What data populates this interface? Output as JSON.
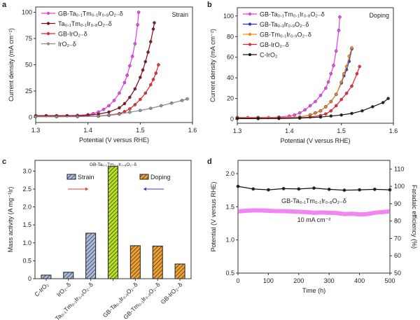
{
  "panel_letters": [
    "a",
    "b",
    "c",
    "d"
  ],
  "chart_data": [
    {
      "panel": "a",
      "type": "line",
      "annotation": "Strain",
      "xlabel": "Potential (V versus RHE)",
      "ylabel": "Current density (mA cm⁻²)",
      "xlim": [
        1.3,
        1.6
      ],
      "ylim": [
        -5,
        105
      ],
      "xticks": [
        1.3,
        1.4,
        1.5,
        1.6
      ],
      "yticks": [
        0,
        25,
        50,
        75,
        100
      ],
      "grid": false,
      "legend": "top-left",
      "series": [
        {
          "name": "GB-Ta₀.₁Tm₀.₁Ir₀.₈O₂₋δ",
          "color": "#e83be8",
          "x": [
            1.3,
            1.32,
            1.34,
            1.36,
            1.38,
            1.4,
            1.41,
            1.42,
            1.43,
            1.44,
            1.45,
            1.46,
            1.47,
            1.475,
            1.48,
            1.485,
            1.49,
            1.495,
            1.497
          ],
          "y": [
            1.5,
            1.5,
            1.5,
            1.5,
            1.8,
            2.5,
            3.5,
            5,
            7.5,
            11,
            16,
            23,
            33,
            40,
            49,
            58,
            70,
            88,
            100
          ]
        },
        {
          "name": "Ta₀.₁Tm₀.₁Ir₀.₈O₂₋δ",
          "color": "#7a0a14",
          "x": [
            1.3,
            1.32,
            1.34,
            1.36,
            1.38,
            1.4,
            1.42,
            1.44,
            1.46,
            1.47,
            1.48,
            1.49,
            1.5,
            1.505,
            1.51,
            1.515,
            1.52,
            1.525,
            1.527
          ],
          "y": [
            1.5,
            1.5,
            1.5,
            1.5,
            1.5,
            2,
            3,
            5,
            9,
            13,
            19,
            27,
            38,
            45,
            53,
            62,
            72,
            84,
            90
          ]
        },
        {
          "name": "GB-IrO₂₋δ",
          "color": "#e8202a",
          "x": [
            1.3,
            1.34,
            1.38,
            1.42,
            1.44,
            1.46,
            1.47,
            1.48,
            1.49,
            1.5,
            1.51,
            1.52,
            1.525,
            1.53,
            1.535
          ],
          "y": [
            1,
            1,
            1,
            1.2,
            2,
            3.5,
            5.5,
            8,
            12,
            17,
            23,
            31,
            36,
            42,
            50
          ]
        },
        {
          "name": "IrO₂₋δ",
          "color": "#8c8c8c",
          "x": [
            1.3,
            1.34,
            1.38,
            1.42,
            1.44,
            1.46,
            1.48,
            1.5,
            1.52,
            1.54,
            1.56,
            1.58,
            1.59
          ],
          "y": [
            0.5,
            0.5,
            0.6,
            1,
            1.8,
            3,
            4.8,
            6.5,
            8.5,
            11,
            13.5,
            16,
            17.5
          ]
        }
      ]
    },
    {
      "panel": "b",
      "type": "line",
      "annotation": "Doping",
      "xlabel": "Potential (V versus RHE)",
      "ylabel": "Current density (mA cm⁻²)",
      "xlim": [
        1.3,
        1.6
      ],
      "ylim": [
        -4,
        108
      ],
      "xticks": [
        1.3,
        1.4,
        1.5,
        1.6
      ],
      "yticks": [
        0,
        20,
        40,
        60,
        80,
        100
      ],
      "grid": false,
      "legend": "top-left",
      "series": [
        {
          "name": "GB-Ta₀.₁Tm₀.₁Ir₀.₈O₂₋δ",
          "color": "#e83be8",
          "x": [
            1.3,
            1.32,
            1.34,
            1.36,
            1.38,
            1.4,
            1.41,
            1.42,
            1.43,
            1.44,
            1.45,
            1.46,
            1.47,
            1.475,
            1.48,
            1.485,
            1.49,
            1.495,
            1.497
          ],
          "y": [
            1.5,
            1.5,
            1.5,
            1.5,
            2,
            3,
            4,
            6,
            9,
            13,
            17,
            23,
            30,
            36,
            44,
            52,
            66,
            86,
            99
          ]
        },
        {
          "name": "GB-Ta₀.₁Ir₀.₉O₂₋δ",
          "color": "#2233cc",
          "x": [
            1.3,
            1.34,
            1.38,
            1.42,
            1.44,
            1.45,
            1.46,
            1.47,
            1.48,
            1.49,
            1.5,
            1.505,
            1.51,
            1.515,
            1.52
          ],
          "y": [
            1.5,
            1.5,
            1.5,
            2,
            4,
            6,
            8,
            12,
            17,
            24,
            35,
            42,
            48,
            56,
            68
          ]
        },
        {
          "name": "GB-Tm₀.₁Ir₀.₉O₂₋δ",
          "color": "#f08a1c",
          "x": [
            1.3,
            1.34,
            1.38,
            1.42,
            1.44,
            1.45,
            1.46,
            1.47,
            1.48,
            1.49,
            1.5,
            1.505,
            1.51,
            1.515,
            1.52
          ],
          "y": [
            1.5,
            1.5,
            1.5,
            2,
            4,
            6,
            8,
            12,
            17,
            24,
            36,
            44,
            51,
            61,
            69
          ]
        },
        {
          "name": "GB-IrO₂₋δ",
          "color": "#e8202a",
          "x": [
            1.3,
            1.34,
            1.38,
            1.42,
            1.44,
            1.46,
            1.47,
            1.48,
            1.49,
            1.5,
            1.51,
            1.52,
            1.53,
            1.535
          ],
          "y": [
            1,
            1,
            1,
            1.2,
            2,
            3.5,
            5,
            8,
            13,
            19,
            25,
            32,
            44,
            51
          ]
        },
        {
          "name": "C-IrO₂",
          "color": "#111111",
          "x": [
            1.3,
            1.34,
            1.38,
            1.42,
            1.46,
            1.48,
            1.5,
            1.52,
            1.54,
            1.56,
            1.58,
            1.59
          ],
          "y": [
            0.5,
            0.5,
            0.6,
            1,
            2,
            3,
            4,
            5.5,
            8,
            12,
            16,
            20
          ]
        }
      ]
    },
    {
      "panel": "c",
      "type": "bar",
      "ylabel": "Mass activity (A mg⁻¹Ir)",
      "ylim": [
        0,
        3.3
      ],
      "yticks": [
        0,
        0.5,
        1.0,
        1.5,
        2.0,
        2.5,
        3.0
      ],
      "categories": [
        "C-IrO₂",
        "IrO₂₋δ",
        "Ta₀.₁Tm₀.₁Ir₀.₈O₂₋δ",
        "",
        "GB-Ta₀.₁Ir₀.₉O₂₋δ",
        "GB-Tm₀.₁Ir₀.₉O₂₋δ",
        "GB-IrO₂₋δ"
      ],
      "top_label": "GB-Ta₀.₁Tm₀.₁Ir₀.₈O₂₋δ",
      "values": [
        0.1,
        0.18,
        1.27,
        3.13,
        0.92,
        0.91,
        0.41
      ],
      "groups": [
        "strain",
        "strain",
        "strain",
        "best",
        "doping",
        "doping",
        "doping"
      ],
      "legend": [
        {
          "name": "Strain",
          "color": "#a9bbdd",
          "arrow": "right",
          "arrow_color": "#e8403a"
        },
        {
          "name": "Doping",
          "color": "#f0a030",
          "arrow": "left",
          "arrow_color": "#3a3ae0"
        }
      ],
      "colors": {
        "strain": "#a9bbdd",
        "doping": "#f0a030",
        "best": "#b8e020"
      },
      "grid": false
    },
    {
      "panel": "d",
      "type": "line",
      "xlabel": "Time (h)",
      "ylabel": "Potential (V versus RHE)",
      "ylabel_right": "Faradaic efficiency (%)",
      "xlim": [
        0,
        500
      ],
      "ylim": [
        0.5,
        2.2
      ],
      "ylim_right": [
        50,
        115
      ],
      "xticks": [
        0,
        100,
        200,
        300,
        400,
        500
      ],
      "yticks": [
        0.5,
        1.0,
        1.5,
        2.0
      ],
      "yticks_right": [
        50,
        60,
        70,
        80,
        90,
        100,
        110
      ],
      "annotations": [
        "GB-Ta₀.₁Tm₀.₁Ir₀.₈O₂₋δ",
        "10 mA cm⁻²"
      ],
      "grid": false,
      "series": [
        {
          "axis": "right",
          "color": "#111111",
          "x": [
            0,
            50,
            100,
            150,
            200,
            250,
            300,
            350,
            400,
            450,
            500
          ],
          "y": [
            100,
            98.5,
            98,
            98.7,
            98.5,
            99,
            98.3,
            97.8,
            98,
            98.3,
            98
          ]
        },
        {
          "axis": "left",
          "color": "#ee66ee",
          "x": [
            0,
            25,
            50,
            75,
            100,
            125,
            150,
            175,
            200,
            225,
            250,
            275,
            300,
            325,
            350,
            375,
            400,
            425,
            450,
            475,
            500
          ],
          "y": [
            1.43,
            1.44,
            1.445,
            1.445,
            1.44,
            1.435,
            1.435,
            1.43,
            1.425,
            1.42,
            1.41,
            1.415,
            1.41,
            1.405,
            1.39,
            1.395,
            1.385,
            1.39,
            1.41,
            1.42,
            1.43
          ]
        }
      ]
    }
  ]
}
